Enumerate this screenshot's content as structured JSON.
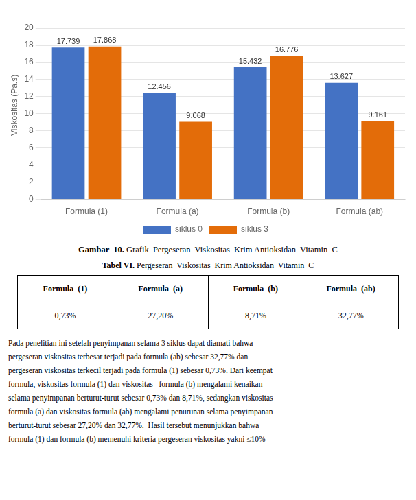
{
  "chart_data": {
    "type": "bar",
    "categories": [
      "Formula (1)",
      "Formula (a)",
      "Formula (b)",
      "Formula (ab)"
    ],
    "series": [
      {
        "name": "siklus 0",
        "color": "#4472C4",
        "values": [
          17.739,
          12.456,
          15.432,
          13.627
        ]
      },
      {
        "name": "siklus 3",
        "color": "#E36C09",
        "values": [
          17.868,
          9.068,
          16.776,
          9.161
        ]
      }
    ],
    "ylabel": "Viskositas (Pa.s)",
    "ylim": [
      0,
      22
    ],
    "yticks": [
      0,
      2,
      4,
      6,
      8,
      10,
      12,
      14,
      16,
      18,
      20
    ],
    "grid": "y",
    "legend": "bottom",
    "data_labels": true
  },
  "caption": [
    "Gambar  10.",
    " Grafik  Pergeseran  Viskositas  Krim Antioksidan  Vitamin  C"
  ],
  "table": {
    "title": [
      "Tabel VI.",
      " Pergeseran  Viskositas  Krim Antioksidan  Vitamin  C"
    ],
    "headers": [
      "Formula  (1)",
      "Formula  (a)",
      "Formula  (b)",
      "Formula  (ab)"
    ],
    "values": [
      "0,73%",
      "27,20%",
      "8,71%",
      "32,77%"
    ]
  },
  "body_lines": [
    "Pada penelitian ini setelah penyimpanan selama 3 siklus dapat diamati bahwa",
    "pergeseran viskositas terbesar terjadi pada formula (ab) sebesar 32,77% dan",
    "pergeseran viskositas terkecil terjadi pada formula (1) sebesar 0,73%. Dari keempat",
    "formula, viskositas formula (1) dan viskositas   formula (b) mengalami kenaikan",
    "selama penyimpanan berturut-turut sebesar 0,73% dan 8,71%, sedangkan viskositas",
    "formula (a) dan viskositas formula (ab) mengalami penurunan selama penyimpanan",
    "berturut-turut sebesar 27,20% dan 32,77%.  Hasil tersebut menunjukkan bahwa",
    "formula (1) dan formula (b) memenuhi kriteria pergeseran viskositas yakni ≤10%"
  ]
}
